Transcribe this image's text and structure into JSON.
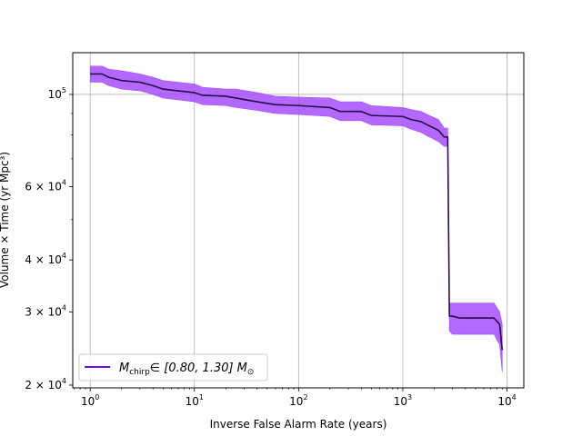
{
  "chart_data": {
    "type": "line",
    "title": "",
    "xlabel": "Inverse False Alarm Rate (years)",
    "ylabel": "Volume × Time (yr Mpc³)",
    "x_scale": "log",
    "y_scale": "log",
    "xlim": [
      0.68,
      14500
    ],
    "ylim": [
      19700,
      126000
    ],
    "grid": true,
    "legend_position": "lower-left",
    "x_ticks": [
      {
        "value": 1,
        "label": "10",
        "exp": "0"
      },
      {
        "value": 10,
        "label": "10",
        "exp": "1"
      },
      {
        "value": 100,
        "label": "10",
        "exp": "2"
      },
      {
        "value": 1000,
        "label": "10",
        "exp": "3"
      },
      {
        "value": 10000,
        "label": "10",
        "exp": "4"
      }
    ],
    "y_ticks": [
      {
        "value": 20000,
        "label": "2 × 10",
        "exp": "4"
      },
      {
        "value": 30000,
        "label": "3 × 10",
        "exp": "4"
      },
      {
        "value": 40000,
        "label": "4 × 10",
        "exp": "4"
      },
      {
        "value": 60000,
        "label": "6 × 10",
        "exp": "4"
      },
      {
        "value": 100000,
        "label": "10",
        "exp": "5"
      }
    ],
    "series": [
      {
        "legend_label": "M",
        "legend_sub": "chirp",
        "legend_rest": "∈ [0.80, 1.30] M",
        "legend_sun": "⊙",
        "color": "#6b10e8",
        "line_color": "#2a0a4a",
        "band_color": "#a64dff",
        "x": [
          1.0,
          1.3,
          1.5,
          2.0,
          3.0,
          4.0,
          5.0,
          7.0,
          10.0,
          12.0,
          20.0,
          25.0,
          40.0,
          60.0,
          100.0,
          200.0,
          250.0,
          400.0,
          500.0,
          1000.0,
          1200.0,
          1500.0,
          1800.0,
          2200.0,
          2500.0,
          2700.0,
          2800.0,
          3000.0,
          3500.0,
          5000.0,
          7500.0,
          8500.0,
          9000.0
        ],
        "y": [
          112000,
          112000,
          110000,
          108000,
          107000,
          105000,
          103000,
          102000,
          101000,
          99500,
          99000,
          98000,
          96000,
          94500,
          94000,
          93000,
          91000,
          91000,
          89000,
          88500,
          87000,
          86000,
          84000,
          82000,
          79000,
          79000,
          29300,
          29300,
          29000,
          29000,
          29000,
          28000,
          24300
        ],
        "upper": [
          117000,
          117000,
          115000,
          114000,
          112000,
          110000,
          108000,
          107000,
          106000,
          104000,
          103000,
          103000,
          101000,
          99000,
          98500,
          98000,
          96000,
          96000,
          94000,
          93000,
          92000,
          91000,
          89000,
          87000,
          83000,
          83000,
          31500,
          31500,
          31500,
          31500,
          31500,
          30000,
          28000
        ],
        "lower": [
          107000,
          107000,
          105000,
          103000,
          102000,
          100000,
          98000,
          97000,
          96000,
          94500,
          94000,
          93000,
          91500,
          90000,
          89500,
          88500,
          86500,
          86500,
          84500,
          84000,
          82500,
          81000,
          79000,
          77000,
          75000,
          75000,
          27000,
          26500,
          26500,
          26500,
          26500,
          25000,
          21500
        ]
      }
    ]
  }
}
